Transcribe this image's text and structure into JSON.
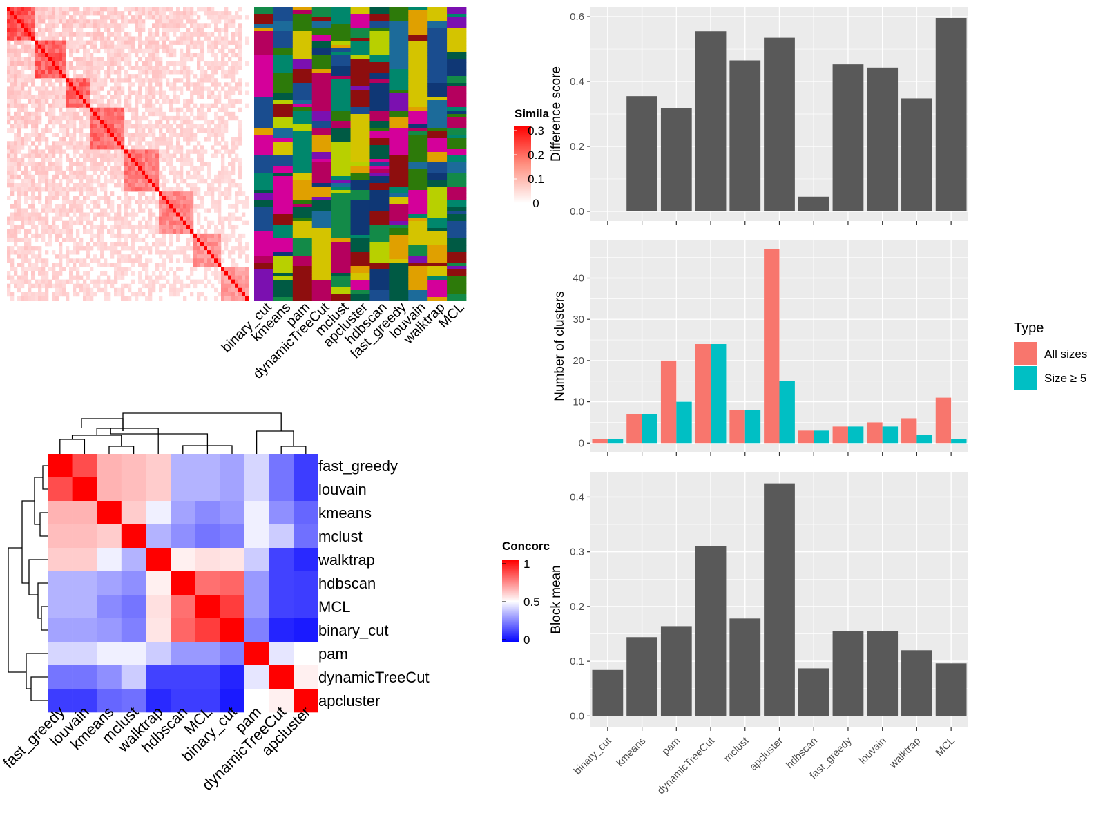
{
  "colors": {
    "similarity_high": "#ff0000",
    "similarity_low": "#ffffff",
    "concordance_high": "#ff0000",
    "concordance_mid": "#ffffff",
    "concordance_low": "#0000ff",
    "panel_bg": "#ebebeb",
    "grid": "#ffffff",
    "bar_dark": "#595959",
    "all_sizes": "#f8766d",
    "size_ge5": "#00bfc4"
  },
  "top_left": {
    "legend_title": "Simila",
    "legend_ticks": [
      "0.3",
      "0.2",
      "0.1",
      "0"
    ],
    "legend_tick_values": [
      0.3,
      0.2,
      0.1,
      0
    ],
    "method_labels": [
      "binary_cut",
      "kmeans",
      "pam",
      "dynamicTreeCut",
      "mclust",
      "apcluster",
      "hdbscan",
      "fast_greedy",
      "louvain",
      "walktrap",
      "MCL"
    ]
  },
  "bottom_left": {
    "legend_title": "Concorc",
    "legend_ticks": [
      "1",
      "0.5",
      "0"
    ],
    "legend_tick_values": [
      1,
      0.5,
      0
    ]
  },
  "chart_data": [
    {
      "type": "heatmap",
      "title": "",
      "row_labels": [
        "fast_greedy",
        "louvain",
        "kmeans",
        "mclust",
        "walktrap",
        "hdbscan",
        "MCL",
        "binary_cut",
        "pam",
        "dynamicTreeCut",
        "apcluster"
      ],
      "col_labels": [
        "fast_greedy",
        "louvain",
        "kmeans",
        "mclust",
        "walktrap",
        "hdbscan",
        "MCL",
        "binary_cut",
        "pam",
        "dynamicTreeCut",
        "apcluster"
      ],
      "values": [
        [
          1.0,
          0.85,
          0.65,
          0.63,
          0.6,
          0.35,
          0.35,
          0.32,
          0.42,
          0.23,
          0.12
        ],
        [
          0.85,
          1.0,
          0.65,
          0.63,
          0.6,
          0.35,
          0.35,
          0.32,
          0.42,
          0.23,
          0.12
        ],
        [
          0.65,
          0.65,
          1.0,
          0.6,
          0.47,
          0.32,
          0.27,
          0.3,
          0.47,
          0.28,
          0.2
        ],
        [
          0.63,
          0.63,
          0.6,
          1.0,
          0.35,
          0.28,
          0.23,
          0.25,
          0.47,
          0.4,
          0.22
        ],
        [
          0.6,
          0.6,
          0.47,
          0.35,
          1.0,
          0.53,
          0.56,
          0.55,
          0.4,
          0.13,
          0.08
        ],
        [
          0.35,
          0.35,
          0.32,
          0.28,
          0.53,
          1.0,
          0.78,
          0.8,
          0.3,
          0.13,
          0.12
        ],
        [
          0.35,
          0.35,
          0.27,
          0.23,
          0.56,
          0.78,
          1.0,
          0.88,
          0.3,
          0.13,
          0.12
        ],
        [
          0.32,
          0.32,
          0.3,
          0.25,
          0.55,
          0.8,
          0.88,
          1.0,
          0.25,
          0.07,
          0.05
        ],
        [
          0.42,
          0.42,
          0.47,
          0.47,
          0.4,
          0.3,
          0.3,
          0.25,
          1.0,
          0.45,
          0.5
        ],
        [
          0.23,
          0.23,
          0.28,
          0.4,
          0.13,
          0.13,
          0.13,
          0.07,
          0.45,
          1.0,
          0.53
        ],
        [
          0.12,
          0.12,
          0.2,
          0.22,
          0.08,
          0.12,
          0.12,
          0.05,
          0.5,
          0.53,
          1.0
        ]
      ]
    },
    {
      "type": "bar",
      "title": "",
      "categories": [
        "binary_cut",
        "kmeans",
        "pam",
        "dynamicTreeCut",
        "mclust",
        "apcluster",
        "hdbscan",
        "fast_greedy",
        "louvain",
        "walktrap",
        "MCL"
      ],
      "values": [
        0.0,
        0.355,
        0.318,
        0.555,
        0.465,
        0.535,
        0.045,
        0.453,
        0.443,
        0.348,
        0.596
      ],
      "xlabel": "",
      "ylabel": "Difference score",
      "yticks": [
        "0.0",
        "0.2",
        "0.4",
        "0.6"
      ],
      "ylim": [
        -0.03,
        0.63
      ]
    },
    {
      "type": "bar",
      "title": "",
      "categories": [
        "binary_cut",
        "kmeans",
        "pam",
        "dynamicTreeCut",
        "mclust",
        "apcluster",
        "hdbscan",
        "fast_greedy",
        "louvain",
        "walktrap",
        "MCL"
      ],
      "series": [
        {
          "name": "All sizes",
          "values": [
            1,
            7,
            20,
            24,
            8,
            47,
            3,
            4,
            5,
            6,
            11
          ]
        },
        {
          "name": "Size ≥ 5",
          "values": [
            1,
            7,
            10,
            24,
            8,
            15,
            3,
            4,
            4,
            2,
            1
          ]
        }
      ],
      "xlabel": "",
      "ylabel": "Number of clusters",
      "yticks": [
        "0",
        "10",
        "20",
        "30",
        "40"
      ],
      "ylim": [
        -2.3,
        49.3
      ],
      "legend_title": "Type",
      "legend_position": "right"
    },
    {
      "type": "bar",
      "title": "",
      "categories": [
        "binary_cut",
        "kmeans",
        "pam",
        "dynamicTreeCut",
        "mclust",
        "apcluster",
        "hdbscan",
        "fast_greedy",
        "louvain",
        "walktrap",
        "MCL"
      ],
      "values": [
        0.084,
        0.144,
        0.164,
        0.31,
        0.178,
        0.425,
        0.087,
        0.155,
        0.155,
        0.12,
        0.096
      ],
      "xlabel": "",
      "ylabel": "Block mean",
      "yticks": [
        "0.0",
        "0.1",
        "0.2",
        "0.3",
        "0.4"
      ],
      "ylim": [
        -0.021,
        0.446
      ]
    }
  ]
}
